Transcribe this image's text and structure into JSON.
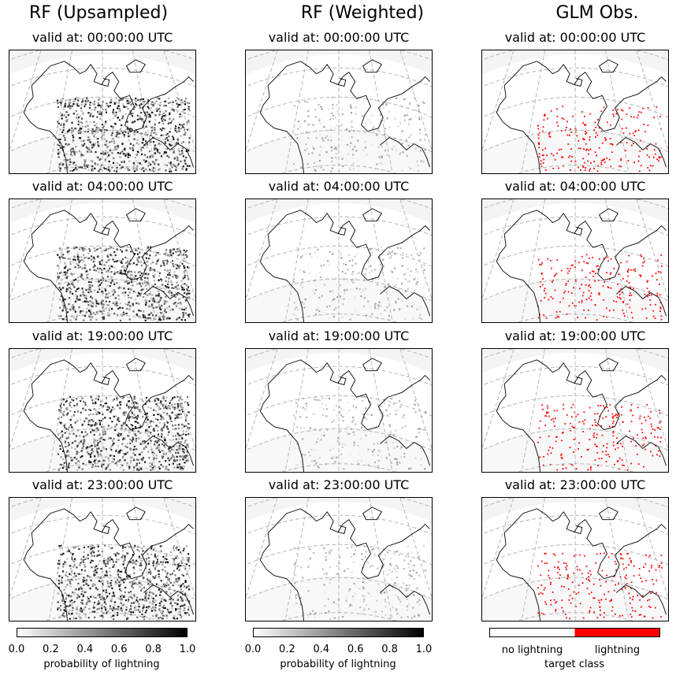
{
  "columns": [
    {
      "id": "rf-upsampled",
      "title": "RF (Upsampled)",
      "style": "prob"
    },
    {
      "id": "rf-weighted",
      "title": "RF (Weighted)",
      "style": "prob-faint"
    },
    {
      "id": "glm-obs",
      "title": "GLM Obs.",
      "style": "binary"
    }
  ],
  "valid_times": [
    "valid at: 00:00:00 UTC",
    "valid at: 04:00:00 UTC",
    "valid at: 19:00:00 UTC",
    "valid at: 23:00:00 UTC"
  ],
  "colorbars": {
    "prob": {
      "ticks": [
        "0.0",
        "0.2",
        "0.4",
        "0.6",
        "0.8",
        "1.0"
      ],
      "label": "probability of lightning",
      "cmap": "greys"
    },
    "binary": {
      "classes": [
        "no lightning",
        "lightning"
      ],
      "colors": [
        "#ffffff",
        "#ff0000"
      ],
      "label": "target class"
    }
  },
  "colors": {
    "lightning": "#ff0000",
    "graticule": "#b5b5b5",
    "coastline": "#000000",
    "background_haze": "#f4f4f4"
  }
}
